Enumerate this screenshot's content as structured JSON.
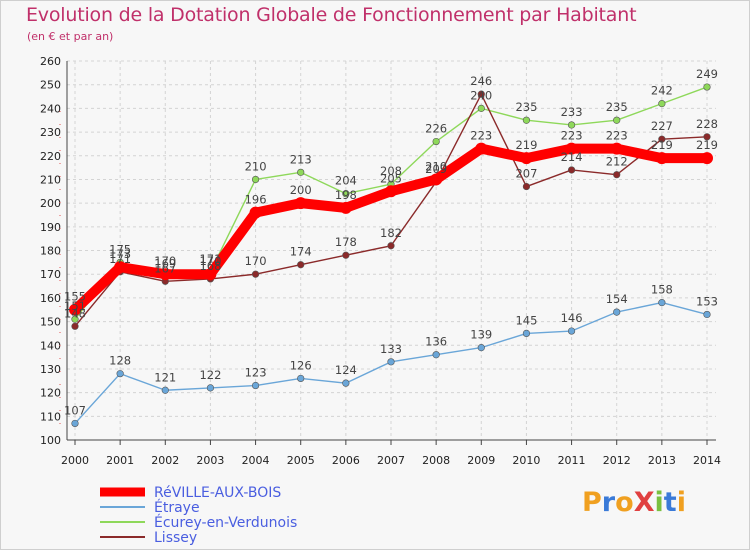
{
  "chart_data": {
    "type": "line",
    "title": "Evolution de la Dotation Globale de Fonctionnement par Habitant",
    "subtitle": "(en € et par an)",
    "xlabel": "",
    "ylabel": "",
    "categories": [
      "2000",
      "2001",
      "2002",
      "2003",
      "2004",
      "2005",
      "2006",
      "2007",
      "2008",
      "2009",
      "2010",
      "2011",
      "2012",
      "2013",
      "2014"
    ],
    "ylim": [
      100,
      260
    ],
    "yticks": [
      100,
      110,
      120,
      130,
      140,
      150,
      160,
      170,
      180,
      190,
      200,
      210,
      220,
      230,
      240,
      250,
      260
    ],
    "grid": true,
    "legend_position": "bottom-left",
    "series": [
      {
        "name": "RéVILLE-AUX-BOIS",
        "color": "#ff0000",
        "values": [
          155,
          173,
          170,
          170,
          196,
          200,
          198,
          205,
          210,
          223,
          219,
          223,
          223,
          219,
          219
        ]
      },
      {
        "name": "Étraye",
        "color": "#6aa6d8",
        "values": [
          107,
          128,
          121,
          122,
          123,
          126,
          124,
          133,
          136,
          139,
          145,
          146,
          154,
          158,
          153
        ]
      },
      {
        "name": "Écurey-en-Verdunois",
        "color": "#8ed85a",
        "values": [
          151,
          175,
          169,
          171,
          210,
          213,
          204,
          208,
          226,
          240,
          235,
          233,
          235,
          242,
          249
        ]
      },
      {
        "name": "Lissey",
        "color": "#8b2a2a",
        "values": [
          148,
          171,
          167,
          168,
          170,
          174,
          178,
          182,
          209,
          246,
          207,
          214,
          212,
          227,
          228
        ]
      }
    ]
  },
  "brand": {
    "logo_text": "ProXiti",
    "logo_colors": [
      "#f0a020",
      "#3a7ad8",
      "#f0a020",
      "#e04040",
      "#7ac040",
      "#3a7ad8",
      "#f0a020"
    ]
  }
}
